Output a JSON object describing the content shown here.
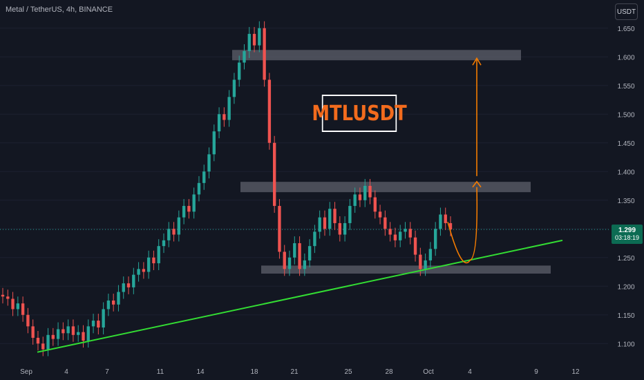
{
  "header": {
    "symbol_title": "Metal / TetherUS, 4h, BINANCE",
    "currency_button": "USDT"
  },
  "annotation": {
    "ticker_label": "MTLUSDT"
  },
  "price_badge": {
    "price": "1.299",
    "countdown": "03:18:19"
  },
  "colors": {
    "background": "#131722",
    "up_candle": "#26a69a",
    "down_candle": "#ef5350",
    "zone": "#5d606b",
    "trendline": "#33dd33",
    "projection": "#f57c00",
    "label_text": "#f26b1d"
  },
  "chart_data": {
    "type": "candlestick",
    "title": "Metal / TetherUS, 4h, BINANCE",
    "y_axis": {
      "ticks": [
        "1.650",
        "1.600",
        "1.550",
        "1.500",
        "1.450",
        "1.400",
        "1.350",
        "1.300",
        "1.250",
        "1.200",
        "1.150",
        "1.100"
      ],
      "range": [
        1.075,
        1.675
      ]
    },
    "x_axis": {
      "ticks": [
        "Sep",
        "4",
        "7",
        "11",
        "14",
        "18",
        "21",
        "25",
        "28",
        "Oct",
        "4",
        "9",
        "12"
      ]
    },
    "last_price": 1.299,
    "candles": [
      [
        1.185,
        1.182
      ],
      [
        1.182,
        1.178
      ],
      [
        1.178,
        1.16
      ],
      [
        1.16,
        1.17
      ],
      [
        1.17,
        1.15
      ],
      [
        1.15,
        1.13
      ],
      [
        1.13,
        1.11
      ],
      [
        1.11,
        1.1
      ],
      [
        1.1,
        1.09
      ],
      [
        1.09,
        1.115
      ],
      [
        1.115,
        1.108
      ],
      [
        1.108,
        1.125
      ],
      [
        1.125,
        1.118
      ],
      [
        1.118,
        1.13
      ],
      [
        1.13,
        1.115
      ],
      [
        1.115,
        1.12
      ],
      [
        1.12,
        1.105
      ],
      [
        1.105,
        1.13
      ],
      [
        1.13,
        1.14
      ],
      [
        1.14,
        1.128
      ],
      [
        1.128,
        1.16
      ],
      [
        1.16,
        1.175
      ],
      [
        1.175,
        1.168
      ],
      [
        1.168,
        1.19
      ],
      [
        1.19,
        1.205
      ],
      [
        1.205,
        1.198
      ],
      [
        1.198,
        1.22
      ],
      [
        1.22,
        1.23
      ],
      [
        1.23,
        1.225
      ],
      [
        1.225,
        1.25
      ],
      [
        1.25,
        1.24
      ],
      [
        1.24,
        1.27
      ],
      [
        1.27,
        1.28
      ],
      [
        1.28,
        1.3
      ],
      [
        1.3,
        1.29
      ],
      [
        1.29,
        1.32
      ],
      [
        1.32,
        1.34
      ],
      [
        1.34,
        1.33
      ],
      [
        1.33,
        1.36
      ],
      [
        1.36,
        1.38
      ],
      [
        1.38,
        1.4
      ],
      [
        1.4,
        1.43
      ],
      [
        1.43,
        1.47
      ],
      [
        1.47,
        1.5
      ],
      [
        1.5,
        1.49
      ],
      [
        1.49,
        1.53
      ],
      [
        1.53,
        1.56
      ],
      [
        1.56,
        1.59
      ],
      [
        1.59,
        1.61
      ],
      [
        1.61,
        1.64
      ],
      [
        1.64,
        1.62
      ],
      [
        1.62,
        1.65
      ],
      [
        1.65,
        1.56
      ],
      [
        1.56,
        1.45
      ],
      [
        1.45,
        1.34
      ],
      [
        1.34,
        1.26
      ],
      [
        1.26,
        1.23
      ],
      [
        1.23,
        1.25
      ],
      [
        1.25,
        1.275
      ],
      [
        1.275,
        1.23
      ],
      [
        1.23,
        1.245
      ],
      [
        1.245,
        1.27
      ],
      [
        1.27,
        1.295
      ],
      [
        1.295,
        1.32
      ],
      [
        1.32,
        1.3
      ],
      [
        1.3,
        1.335
      ],
      [
        1.335,
        1.31
      ],
      [
        1.31,
        1.29
      ],
      [
        1.29,
        1.31
      ],
      [
        1.31,
        1.34
      ],
      [
        1.34,
        1.36
      ],
      [
        1.36,
        1.35
      ],
      [
        1.35,
        1.375
      ],
      [
        1.375,
        1.355
      ],
      [
        1.355,
        1.33
      ],
      [
        1.33,
        1.32
      ],
      [
        1.32,
        1.3
      ],
      [
        1.3,
        1.29
      ],
      [
        1.29,
        1.28
      ],
      [
        1.28,
        1.295
      ],
      [
        1.295,
        1.3
      ],
      [
        1.3,
        1.285
      ],
      [
        1.285,
        1.255
      ],
      [
        1.255,
        1.23
      ],
      [
        1.23,
        1.245
      ],
      [
        1.245,
        1.265
      ],
      [
        1.265,
        1.3
      ],
      [
        1.3,
        1.325
      ],
      [
        1.325,
        1.31
      ],
      [
        1.31,
        1.299
      ]
    ],
    "zones": [
      {
        "top": 1.612,
        "bottom": 1.594
      },
      {
        "top": 1.382,
        "bottom": 1.364
      },
      {
        "top": 1.236,
        "bottom": 1.222
      }
    ],
    "trendline": {
      "from": {
        "x": "Sep",
        "y": 1.085
      },
      "to": {
        "x": "12",
        "y": 1.28
      }
    },
    "projection": {
      "low": 1.245,
      "target_mid": 1.38,
      "target_high": 1.6
    }
  }
}
